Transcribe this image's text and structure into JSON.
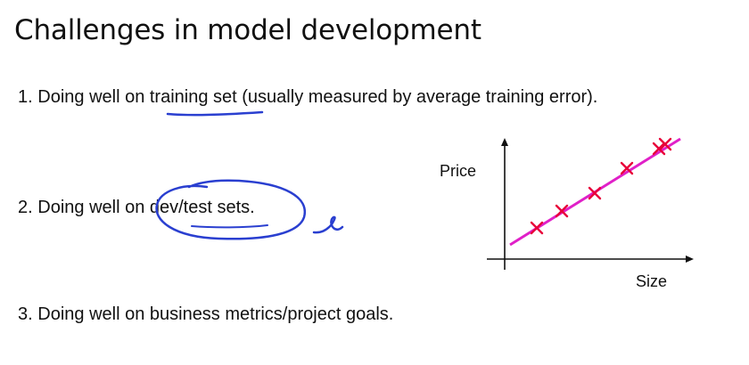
{
  "slide": {
    "title": "Challenges in model development",
    "points": [
      {
        "number": "1.",
        "text_before": "Doing well on ",
        "emphasis": "training set",
        "text_after": " (usually measured by average training error)."
      },
      {
        "number": "2.",
        "text_before": "Doing well on ",
        "emphasis": "dev/test sets",
        "text_after": "."
      },
      {
        "number": "3.",
        "text_before": "Doing well on business metrics/project goals.",
        "emphasis": "",
        "text_after": ""
      }
    ]
  },
  "graph": {
    "y_label": "Price",
    "x_label": "Size",
    "fit_line_color": "#e020c8",
    "marker_color": "#e8003a",
    "axis_color": "#111111",
    "marker_count": 6
  },
  "annotations": {
    "pen_color": "#2a3fd0"
  }
}
